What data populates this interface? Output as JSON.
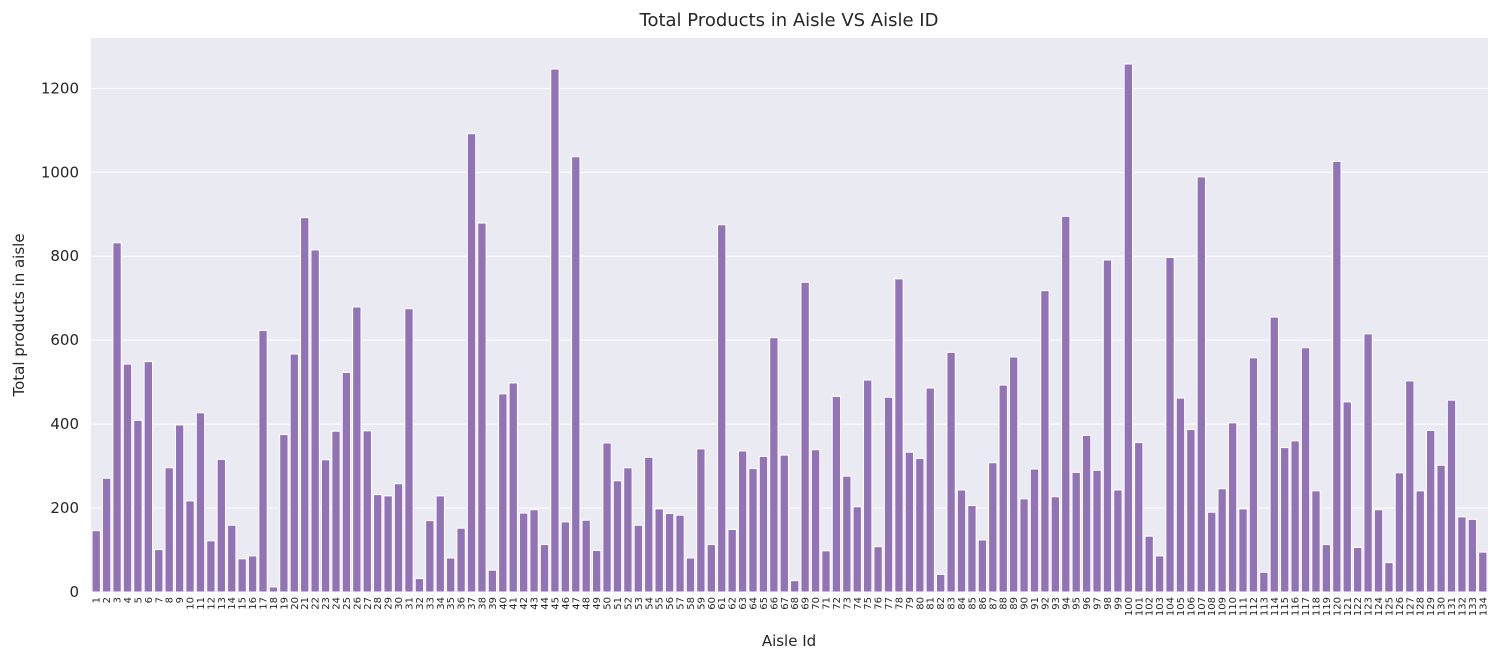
{
  "chart_data": {
    "type": "bar",
    "title": "Total Products in Aisle VS Aisle ID",
    "xlabel": "Aisle Id",
    "ylabel": "Total products in aisle",
    "ylim": [
      0,
      1320
    ],
    "yticks": [
      0,
      200,
      400,
      600,
      800,
      1000,
      1200
    ],
    "grid": true,
    "bar_color": "#9273b5",
    "plot_background": "#eaeaf2",
    "grid_color": "#ffffff",
    "categories": [
      "1",
      "2",
      "3",
      "4",
      "5",
      "6",
      "7",
      "8",
      "9",
      "10",
      "11",
      "12",
      "13",
      "14",
      "15",
      "16",
      "17",
      "18",
      "19",
      "20",
      "21",
      "22",
      "23",
      "24",
      "25",
      "26",
      "27",
      "28",
      "29",
      "30",
      "31",
      "32",
      "33",
      "34",
      "35",
      "36",
      "37",
      "38",
      "39",
      "40",
      "41",
      "42",
      "43",
      "44",
      "45",
      "46",
      "47",
      "48",
      "49",
      "50",
      "51",
      "52",
      "53",
      "54",
      "55",
      "56",
      "57",
      "58",
      "59",
      "60",
      "61",
      "62",
      "63",
      "64",
      "65",
      "66",
      "67",
      "68",
      "69",
      "70",
      "71",
      "72",
      "73",
      "74",
      "75",
      "76",
      "77",
      "78",
      "79",
      "80",
      "81",
      "82",
      "83",
      "84",
      "85",
      "86",
      "87",
      "88",
      "89",
      "90",
      "91",
      "92",
      "93",
      "94",
      "95",
      "96",
      "97",
      "98",
      "99",
      "100",
      "101",
      "102",
      "103",
      "104",
      "105",
      "106",
      "107",
      "108",
      "109",
      "110",
      "111",
      "112",
      "113",
      "114",
      "115",
      "116",
      "117",
      "118",
      "119",
      "120",
      "121",
      "122",
      "123",
      "124",
      "125",
      "126",
      "127",
      "128",
      "129",
      "130",
      "131",
      "132",
      "133",
      "134"
    ],
    "values": [
      146,
      271,
      832,
      543,
      409,
      549,
      101,
      296,
      398,
      217,
      427,
      122,
      316,
      159,
      79,
      86,
      623,
      12,
      375,
      567,
      892,
      815,
      315,
      383,
      523,
      679,
      384,
      232,
      229,
      258,
      675,
      32,
      170,
      229,
      81,
      152,
      1092,
      879,
      52,
      472,
      498,
      188,
      196,
      113,
      1246,
      167,
      1037,
      171,
      99,
      355,
      265,
      296,
      159,
      321,
      198,
      187,
      183,
      81,
      341,
      113,
      875,
      149,
      336,
      294,
      323,
      606,
      326,
      27,
      738,
      339,
      98,
      466,
      276,
      203,
      505,
      108,
      464,
      746,
      333,
      318,
      486,
      42,
      571,
      243,
      206,
      124,
      308,
      493,
      560,
      222,
      293,
      718,
      227,
      895,
      285,
      373,
      290,
      791,
      243,
      1258,
      356,
      133,
      86,
      797,
      462,
      387,
      989,
      190,
      246,
      403,
      198,
      558,
      47,
      655,
      344,
      360,
      582,
      241,
      113,
      1026,
      453,
      106,
      615,
      196,
      70,
      284,
      503,
      241,
      385,
      302,
      457,
      179,
      173,
      95
    ]
  }
}
